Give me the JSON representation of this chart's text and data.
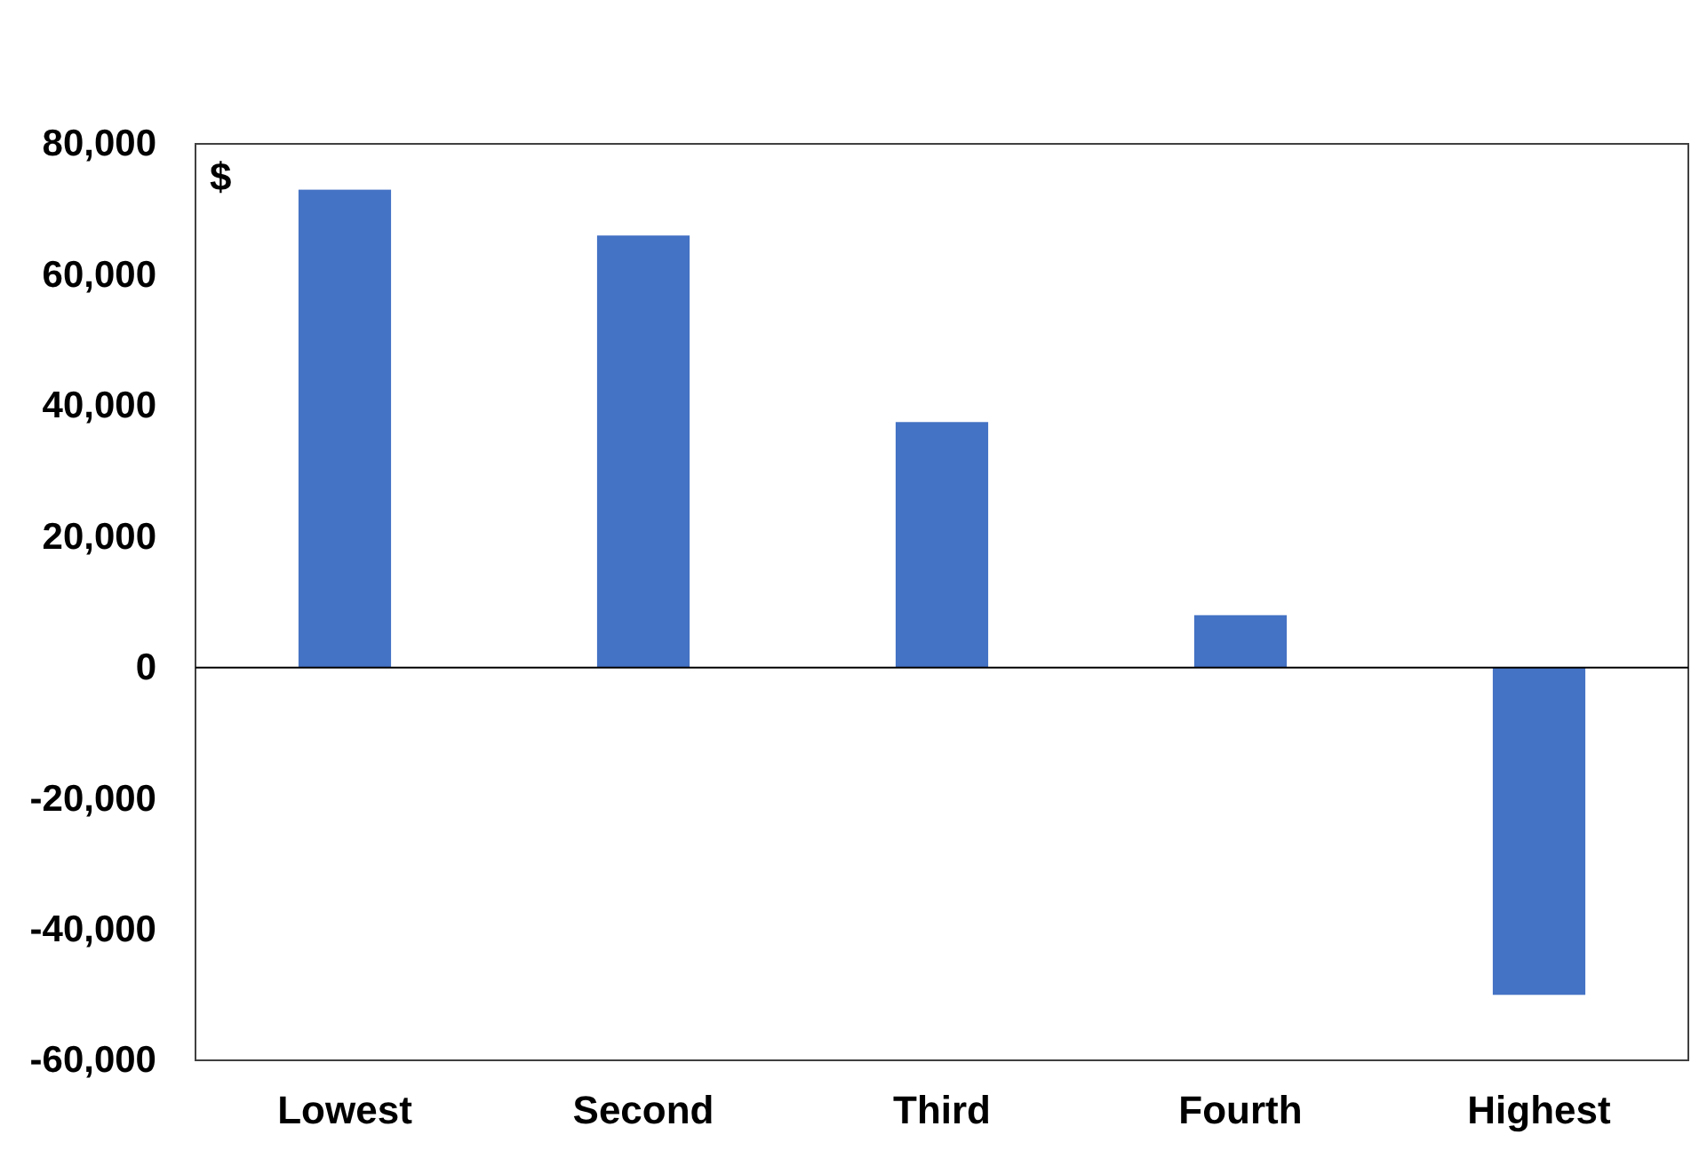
{
  "chart_data": {
    "type": "bar",
    "ylabel": "$",
    "categories": [
      "Lowest",
      "Second",
      "Third",
      "Fourth",
      "Highest"
    ],
    "values": [
      73000,
      66000,
      37500,
      8000,
      -50000
    ],
    "color": "#4472c4",
    "ylim": [
      -60000,
      80000
    ],
    "yticks": [
      {
        "value": -60000,
        "label": "-60,000"
      },
      {
        "value": -40000,
        "label": "-40,000"
      },
      {
        "value": -20000,
        "label": "-20,000"
      },
      {
        "value": 0,
        "label": "0"
      },
      {
        "value": 20000,
        "label": "20,000"
      },
      {
        "value": 40000,
        "label": "40,000"
      },
      {
        "value": 60000,
        "label": "60,000"
      },
      {
        "value": 80000,
        "label": "80,000"
      }
    ]
  }
}
